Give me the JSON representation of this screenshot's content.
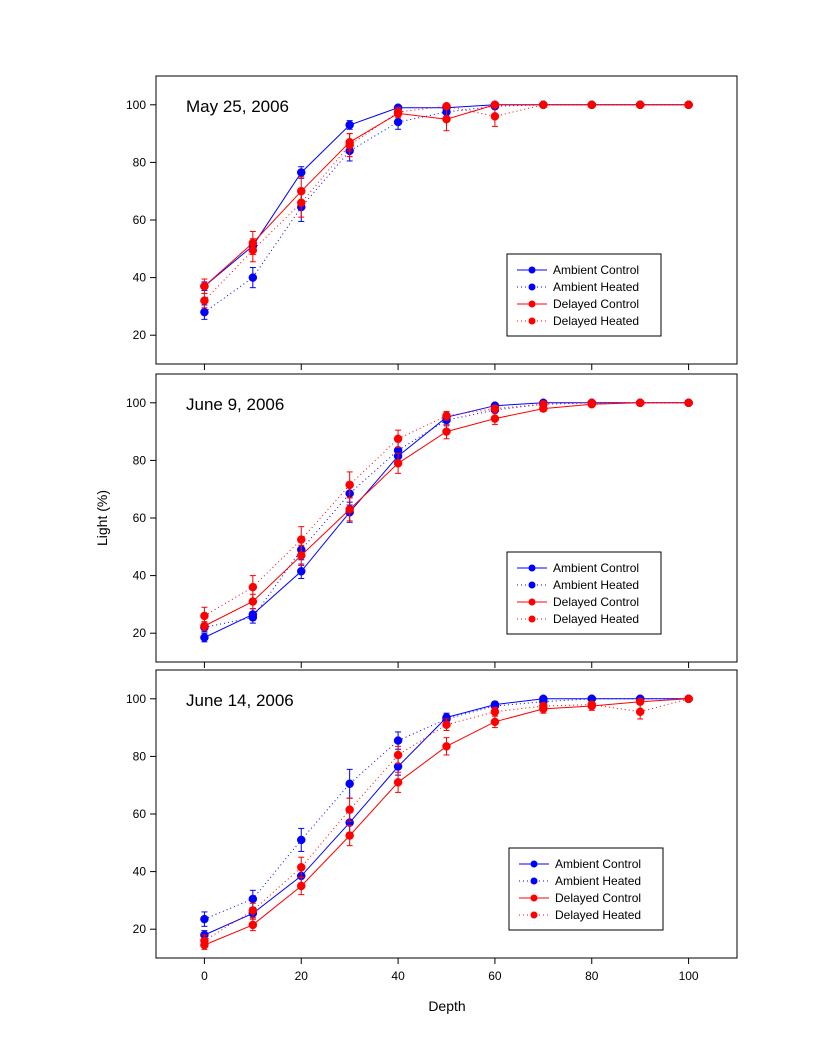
{
  "figure": {
    "ylabel": "Light (%)",
    "xlabel": "Depth",
    "xticks": [
      0,
      20,
      40,
      60,
      80,
      100
    ],
    "yticks": [
      20,
      40,
      60,
      80,
      100
    ]
  },
  "chart_data": [
    {
      "type": "line",
      "title": "May 25, 2006",
      "xlim": [
        -10,
        110
      ],
      "ylim": [
        10,
        110
      ],
      "x": [
        0,
        10,
        20,
        30,
        40,
        50,
        60,
        70,
        80,
        90,
        100
      ],
      "grid": false,
      "legend_position": "lower-right",
      "series": [
        {
          "name": "Ambient Control",
          "color": "#0000ff",
          "style": "solid",
          "values": [
            37,
            51,
            76.5,
            93,
            99,
            99,
            100,
            100,
            100,
            100,
            100
          ],
          "errors": [
            1.5,
            2,
            2,
            1.5,
            0.5,
            0.5,
            0.3,
            0.2,
            0,
            0,
            0
          ]
        },
        {
          "name": "Ambient Heated",
          "color": "#0000ff",
          "style": "dotted",
          "values": [
            28,
            40,
            64.5,
            84,
            94,
            97.5,
            99.5,
            100,
            100,
            100,
            100
          ],
          "errors": [
            2.5,
            3.5,
            5,
            3.5,
            2.5,
            1.5,
            0.8,
            0.2,
            0,
            0,
            0
          ]
        },
        {
          "name": "Delayed Control",
          "color": "#ff0000",
          "style": "solid",
          "values": [
            37,
            52,
            70,
            87,
            97,
            95,
            100,
            100,
            100,
            100,
            100
          ],
          "errors": [
            2.5,
            4,
            5,
            3,
            1.5,
            4,
            0.5,
            0.2,
            0,
            0,
            0
          ]
        },
        {
          "name": "Delayed Heated",
          "color": "#ff0000",
          "style": "dotted",
          "values": [
            32,
            49.5,
            66,
            86,
            97.5,
            99.5,
            96,
            100,
            100,
            100,
            100
          ],
          "errors": [
            2.5,
            4,
            5,
            4,
            1.5,
            0.5,
            3.5,
            0.2,
            0,
            0,
            0
          ]
        }
      ]
    },
    {
      "type": "line",
      "title": "June 9, 2006",
      "xlim": [
        -10,
        110
      ],
      "ylim": [
        10,
        110
      ],
      "x": [
        0,
        10,
        20,
        30,
        40,
        50,
        60,
        70,
        80,
        90,
        100
      ],
      "grid": false,
      "legend_position": "lower-right",
      "series": [
        {
          "name": "Ambient Control",
          "color": "#0000ff",
          "style": "solid",
          "values": [
            18.5,
            26.5,
            41.5,
            62,
            81.5,
            95,
            99,
            100,
            100,
            100,
            100
          ],
          "errors": [
            1.5,
            2,
            2.5,
            3.5,
            3,
            1.5,
            0.5,
            0.2,
            0,
            0,
            0
          ]
        },
        {
          "name": "Ambient Heated",
          "color": "#0000ff",
          "style": "dotted",
          "values": [
            22,
            25.5,
            49,
            68.5,
            83.5,
            94,
            97.5,
            99.5,
            100,
            100,
            100
          ],
          "errors": [
            1.5,
            2,
            3.5,
            4,
            3,
            2,
            1,
            0.3,
            0,
            0,
            0
          ]
        },
        {
          "name": "Delayed Control",
          "color": "#ff0000",
          "style": "solid",
          "values": [
            22.5,
            31,
            47,
            63,
            79,
            90,
            94.5,
            98,
            99.5,
            100,
            100
          ],
          "errors": [
            1.5,
            2.5,
            3.5,
            4,
            3.5,
            2.5,
            2,
            1,
            0.3,
            0,
            0
          ]
        },
        {
          "name": "Delayed Heated",
          "color": "#ff0000",
          "style": "dotted",
          "values": [
            26,
            36,
            52.5,
            71.5,
            87.5,
            95.5,
            98,
            99.5,
            100,
            100,
            100
          ],
          "errors": [
            3,
            4,
            4.5,
            4.5,
            3,
            1.5,
            1,
            0.3,
            0,
            0,
            0
          ]
        }
      ]
    },
    {
      "type": "line",
      "title": "June 14, 2006",
      "xlim": [
        -10,
        110
      ],
      "ylim": [
        10,
        110
      ],
      "x": [
        0,
        10,
        20,
        30,
        40,
        50,
        60,
        70,
        80,
        90,
        100
      ],
      "grid": false,
      "legend_position": "lower-right",
      "series": [
        {
          "name": "Ambient Control",
          "color": "#0000ff",
          "style": "solid",
          "values": [
            18,
            25.5,
            38.5,
            57,
            76.5,
            93.5,
            98,
            100,
            100,
            100,
            100
          ],
          "errors": [
            1.5,
            2,
            2.5,
            3.5,
            3,
            1.5,
            1,
            0.3,
            0.3,
            0,
            0
          ]
        },
        {
          "name": "Ambient Heated",
          "color": "#0000ff",
          "style": "dotted",
          "values": [
            23.5,
            30.5,
            51,
            70.5,
            85.5,
            93,
            97.5,
            99,
            100,
            100,
            100
          ],
          "errors": [
            2.5,
            3,
            4,
            5,
            3,
            1.5,
            1,
            0.5,
            0.3,
            0.3,
            0
          ]
        },
        {
          "name": "Delayed Control",
          "color": "#ff0000",
          "style": "solid",
          "values": [
            14.5,
            21.5,
            35,
            52.5,
            71,
            83.5,
            92,
            96.5,
            97.5,
            99,
            100
          ],
          "errors": [
            1.5,
            2,
            3,
            3.5,
            3.5,
            3,
            2,
            1.5,
            1.5,
            0.5,
            0
          ]
        },
        {
          "name": "Delayed Heated",
          "color": "#ff0000",
          "style": "dotted",
          "values": [
            16,
            26.5,
            41.5,
            61.5,
            80.5,
            91,
            95.5,
            97.5,
            98,
            95.5,
            100
          ],
          "errors": [
            2,
            2.5,
            3.5,
            4,
            3,
            2,
            1.5,
            1,
            1,
            2.5,
            0
          ]
        }
      ]
    }
  ]
}
